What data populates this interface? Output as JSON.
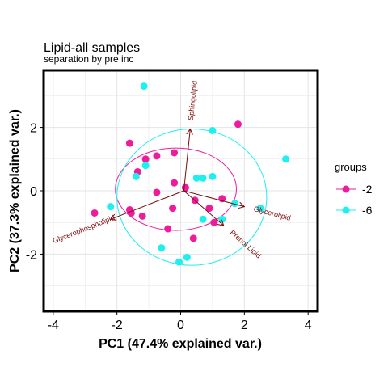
{
  "chart_data": {
    "type": "scatter",
    "title": "Lipid-all samples",
    "subtitle": "separation by pre inc",
    "xlabel": "PC1 (47.4% explained var.)",
    "ylabel": "PC2 (37.3% explained var.)",
    "xlim": [
      -4.3,
      4.3
    ],
    "ylim": [
      -3.8,
      3.8
    ],
    "xticks": [
      -4,
      -2,
      0,
      2,
      4
    ],
    "yticks": [
      -2,
      0,
      2
    ],
    "grid": true,
    "legend": {
      "title": "groups",
      "position": "right"
    },
    "series": [
      {
        "name": "-2",
        "color": "#ee1c9c",
        "points": [
          [
            -2.7,
            -0.7
          ],
          [
            -1.6,
            1.5
          ],
          [
            -1.1,
            1.0
          ],
          [
            -0.75,
            1.1
          ],
          [
            -0.2,
            1.2
          ],
          [
            1.8,
            2.1
          ],
          [
            -0.2,
            0.25
          ],
          [
            -1.35,
            0.6
          ],
          [
            -0.75,
            -0.05
          ],
          [
            0.15,
            0.1
          ],
          [
            -1.6,
            -0.6
          ],
          [
            -1.55,
            -0.7
          ],
          [
            -1.2,
            -0.8
          ],
          [
            -0.25,
            -0.55
          ],
          [
            0.45,
            -0.3
          ],
          [
            0.9,
            -0.55
          ],
          [
            1.3,
            -0.25
          ],
          [
            1.05,
            -1.0
          ],
          [
            -0.4,
            -1.2
          ],
          [
            0.4,
            -1.5
          ]
        ],
        "ellipse": {
          "cx": -0.15,
          "cy": 0.05,
          "rx": 1.9,
          "ry": 1.3,
          "angle_deg": 0
        }
      },
      {
        "name": "-6",
        "color": "#1ef0f0",
        "points": [
          [
            -1.15,
            3.3
          ],
          [
            1.0,
            1.9
          ],
          [
            3.3,
            1.0
          ],
          [
            -1.1,
            0.8
          ],
          [
            -1.4,
            0.45
          ],
          [
            0.5,
            0.4
          ],
          [
            0.7,
            0.4
          ],
          [
            1.0,
            0.45
          ],
          [
            -2.2,
            -0.5
          ],
          [
            1.7,
            -0.4
          ],
          [
            2.5,
            -0.55
          ],
          [
            0.7,
            -0.9
          ],
          [
            1.3,
            -0.9
          ],
          [
            -0.6,
            -1.8
          ],
          [
            0.2,
            -2.1
          ],
          [
            -0.05,
            -2.25
          ]
        ],
        "ellipse": {
          "cx": 0.35,
          "cy": -0.2,
          "rx": 2.35,
          "ry": 2.15,
          "angle_deg": 0
        }
      }
    ],
    "loadings": [
      {
        "name": "Sphingolipid",
        "x": 0.3,
        "y": 1.95
      },
      {
        "name": "Glycerolipid",
        "x": 2.0,
        "y": -0.5
      },
      {
        "name": "Prenol Lipid",
        "x": 1.35,
        "y": -1.1
      },
      {
        "name": "Glycerophospholipid",
        "x": -2.2,
        "y": -0.9
      }
    ],
    "loading_origin": [
      0.1,
      0.0
    ],
    "colors": {
      "arrow": "#7a0a0a",
      "grid": "#e5e5e5",
      "frame": "#000000"
    }
  }
}
